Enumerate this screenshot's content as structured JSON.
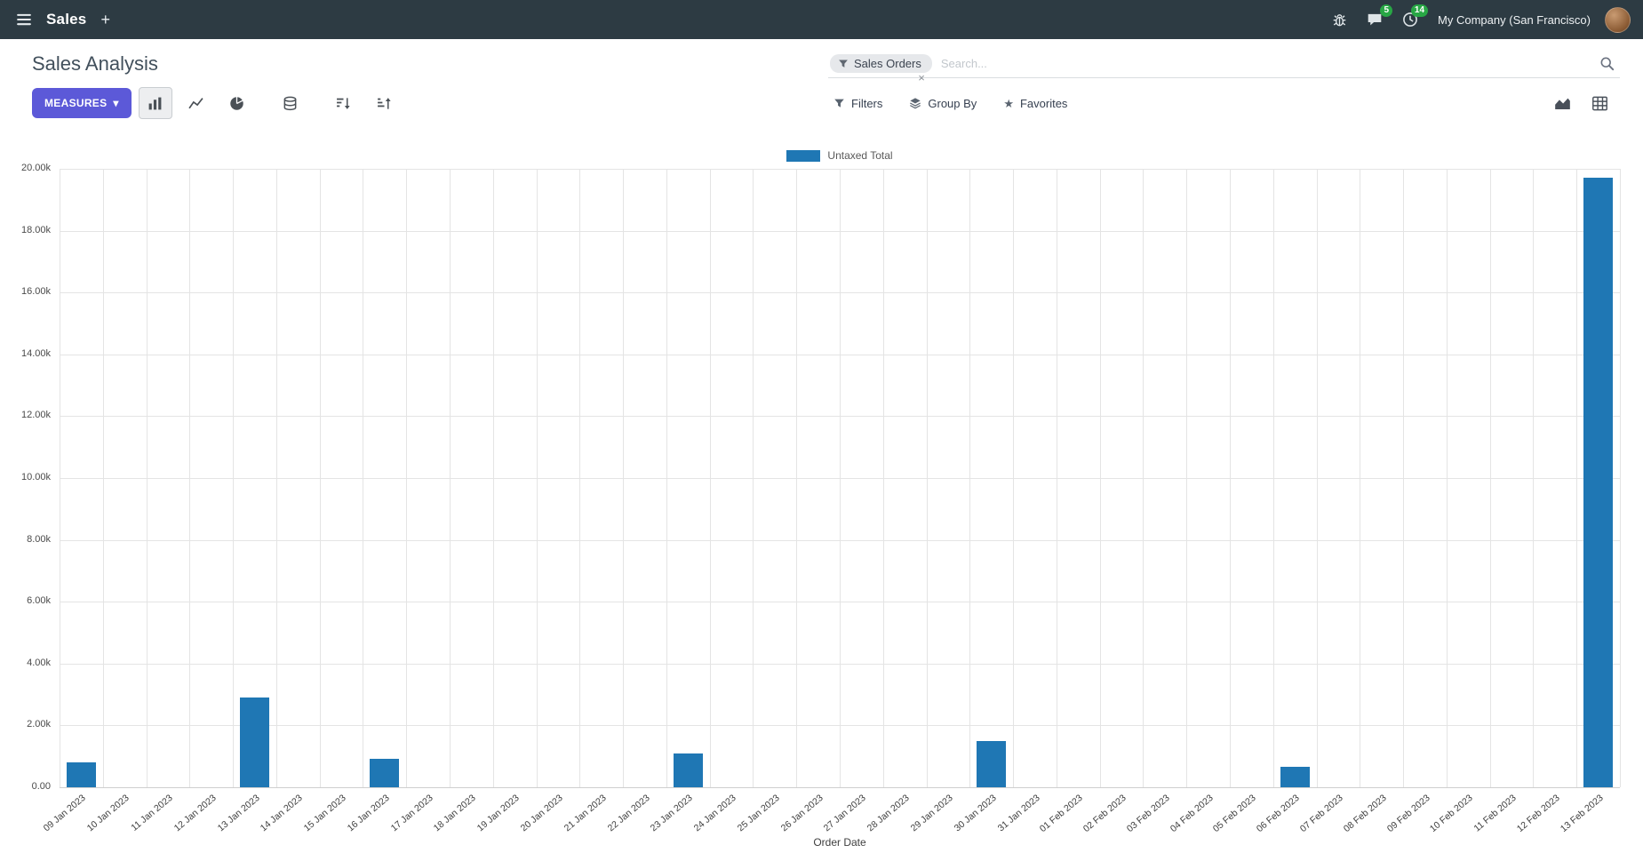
{
  "navbar": {
    "app_name": "Sales",
    "company": "My Company (San Francisco)",
    "messages_badge": "5",
    "activities_badge": "14"
  },
  "control_panel": {
    "title": "Sales Analysis",
    "measures_label": "MEASURES",
    "filters_label": "Filters",
    "group_by_label": "Group By",
    "favorites_label": "Favorites"
  },
  "search": {
    "facet_label": "Sales Orders",
    "placeholder": "Search...",
    "remove_glyph": "×"
  },
  "icons": {
    "star": "★",
    "caret_down": "▾",
    "plus": "+"
  },
  "colors": {
    "navbar_bg": "#2D3B43",
    "accent": "#5C59D8",
    "bar": "#1F77B4",
    "badge": "#28A745"
  },
  "chart_data": {
    "type": "bar",
    "title": "",
    "legend": [
      "Untaxed Total"
    ],
    "legend_position": "top",
    "series_color": "#1F77B4",
    "xlabel": "Order Date",
    "ylabel": "",
    "ylim": [
      0,
      20000
    ],
    "grid": true,
    "y_ticks": [
      "20.00k",
      "18.00k",
      "16.00k",
      "14.00k",
      "12.00k",
      "10.00k",
      "8.00k",
      "6.00k",
      "4.00k",
      "2.00k",
      "0.00"
    ],
    "categories": [
      "09 Jan 2023",
      "10 Jan 2023",
      "11 Jan 2023",
      "12 Jan 2023",
      "13 Jan 2023",
      "14 Jan 2023",
      "15 Jan 2023",
      "16 Jan 2023",
      "17 Jan 2023",
      "18 Jan 2023",
      "19 Jan 2023",
      "20 Jan 2023",
      "21 Jan 2023",
      "22 Jan 2023",
      "23 Jan 2023",
      "24 Jan 2023",
      "25 Jan 2023",
      "26 Jan 2023",
      "27 Jan 2023",
      "28 Jan 2023",
      "29 Jan 2023",
      "30 Jan 2023",
      "31 Jan 2023",
      "01 Feb 2023",
      "02 Feb 2023",
      "03 Feb 2023",
      "04 Feb 2023",
      "05 Feb 2023",
      "06 Feb 2023",
      "07 Feb 2023",
      "08 Feb 2023",
      "09 Feb 2023",
      "10 Feb 2023",
      "11 Feb 2023",
      "12 Feb 2023",
      "13 Feb 2023"
    ],
    "values": [
      800,
      0,
      0,
      0,
      2900,
      0,
      0,
      930,
      0,
      0,
      0,
      0,
      0,
      0,
      1080,
      0,
      0,
      0,
      0,
      0,
      0,
      1500,
      0,
      0,
      0,
      0,
      0,
      0,
      650,
      0,
      0,
      0,
      0,
      0,
      0,
      19700
    ]
  }
}
